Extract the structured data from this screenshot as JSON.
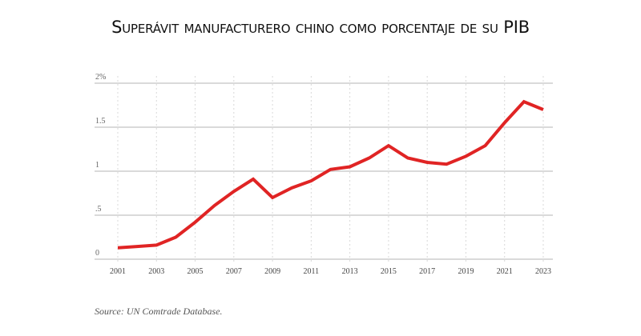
{
  "chart_data": {
    "type": "line",
    "title": "Superávit manufacturero chino como porcentaje de su PIB",
    "xlabel": "",
    "ylabel": "",
    "x": [
      2001,
      2002,
      2003,
      2004,
      2005,
      2006,
      2007,
      2008,
      2009,
      2010,
      2011,
      2012,
      2013,
      2014,
      2015,
      2016,
      2017,
      2018,
      2019,
      2020,
      2021,
      2022,
      2023
    ],
    "series": [
      {
        "name": "Superávit manufacturero (% del PIB)",
        "color": "#e02424",
        "values": [
          0.13,
          0.145,
          0.16,
          0.25,
          0.42,
          0.61,
          0.77,
          0.91,
          0.7,
          0.81,
          0.89,
          1.02,
          1.05,
          1.15,
          1.29,
          1.15,
          1.1,
          1.08,
          1.17,
          1.29,
          1.55,
          1.79,
          1.7
        ]
      }
    ],
    "ylim": [
      0,
      2
    ],
    "xlim": [
      2001,
      2023
    ],
    "y_ticks": [
      {
        "value": 0,
        "label": "0"
      },
      {
        "value": 0.5,
        "label": ".5"
      },
      {
        "value": 1,
        "label": "1"
      },
      {
        "value": 1.5,
        "label": "1.5"
      },
      {
        "value": 2,
        "label": "2%"
      }
    ],
    "x_ticks": [
      {
        "value": 2001,
        "label": "2001"
      },
      {
        "value": 2003,
        "label": "2003"
      },
      {
        "value": 2005,
        "label": "2005"
      },
      {
        "value": 2007,
        "label": "2007"
      },
      {
        "value": 2009,
        "label": "2009"
      },
      {
        "value": 2011,
        "label": "2011"
      },
      {
        "value": 2013,
        "label": "2013"
      },
      {
        "value": 2015,
        "label": "2015"
      },
      {
        "value": 2017,
        "label": "2017"
      },
      {
        "value": 2019,
        "label": "2019"
      },
      {
        "value": 2021,
        "label": "2021"
      },
      {
        "value": 2023,
        "label": "2023"
      }
    ],
    "grid": {
      "horizontal": true,
      "vertical_dotted": true
    },
    "legend": "none",
    "source": "Source: UN Comtrade Database."
  }
}
